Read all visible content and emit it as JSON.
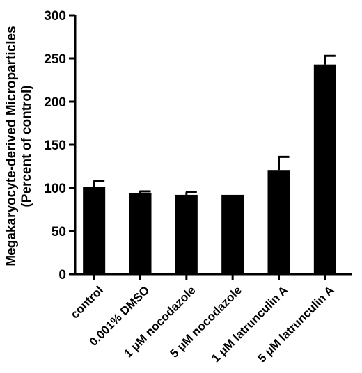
{
  "chart_data": {
    "type": "bar",
    "title": "",
    "xlabel": "",
    "ylabel": [
      "Megakaryocyte-derived Microparticles",
      "(Percent of control)"
    ],
    "categories": [
      "control",
      "0.001% DMSO",
      "1 μM nocodazole",
      "5 μM nocodazole",
      "1 μM latrunculin A",
      "5 μM latrunculin A"
    ],
    "values": [
      101,
      94,
      92,
      92,
      120,
      243
    ],
    "error_upper": [
      108,
      96,
      95,
      92,
      136,
      253
    ],
    "ylim": [
      0,
      300
    ],
    "yticks": [
      0,
      50,
      100,
      150,
      200,
      250,
      300
    ],
    "grid": false,
    "bar_color": "#000000"
  }
}
